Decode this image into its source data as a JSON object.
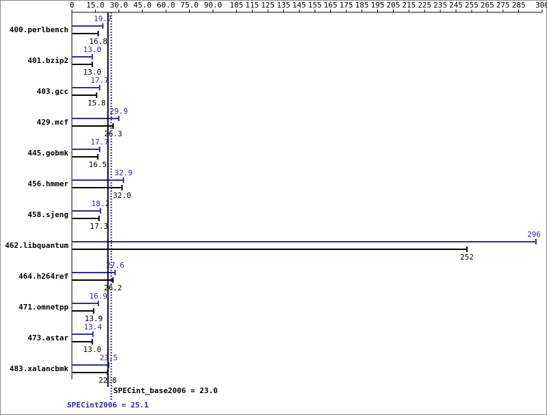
{
  "chart_data": {
    "type": "bar",
    "orientation": "horizontal",
    "categories": [
      "400.perlbench",
      "401.bzip2",
      "403.gcc",
      "429.mcf",
      "445.gobmk",
      "456.hmmer",
      "458.sjeng",
      "462.libquantum",
      "464.h264ref",
      "471.omnetpp",
      "473.astar",
      "483.xalancbmk"
    ],
    "series": [
      {
        "color": "#2b2b9b",
        "values": [
          19.7,
          13.0,
          17.7,
          29.9,
          17.7,
          32.9,
          18.2,
          296,
          27.6,
          16.9,
          13.4,
          23.5
        ],
        "value_labels": [
          "19.7",
          "13.0",
          "17.7",
          "29.9",
          "17.7",
          "32.9",
          "18.2",
          "296",
          "27.6",
          "16.9",
          "13.4",
          "23.5"
        ]
      },
      {
        "color": "#000000",
        "values": [
          16.8,
          13.0,
          15.8,
          26.3,
          16.5,
          32.0,
          17.3,
          252,
          26.2,
          13.9,
          13.0,
          22.8
        ],
        "value_labels": [
          "16.8",
          "13.0",
          "15.8",
          "26.3",
          "16.5",
          "32.0",
          "17.3",
          "252",
          "26.2",
          "13.9",
          "13.0",
          "22.8"
        ]
      }
    ],
    "xlim": [
      0,
      300
    ],
    "xticks": [
      0,
      {
        "value": 15,
        "label": "15.0"
      },
      {
        "value": 30,
        "label": "30.0"
      },
      {
        "value": 45,
        "label": "45.0"
      },
      {
        "value": 60,
        "label": "60.0"
      },
      {
        "value": 75,
        "label": "75.0"
      },
      {
        "value": 90,
        "label": "90.0"
      },
      105,
      115,
      125,
      135,
      145,
      155,
      165,
      175,
      185,
      195,
      205,
      215,
      225,
      235,
      245,
      255,
      265,
      275,
      285,
      300
    ],
    "annotations": [
      {
        "text": "SPECint_base2006 = 23.0",
        "value": 23.0,
        "color": "#000000"
      },
      {
        "text": "SPECint2006 = 25.1",
        "value": 25.1,
        "color": "#2b2b9b"
      }
    ]
  }
}
